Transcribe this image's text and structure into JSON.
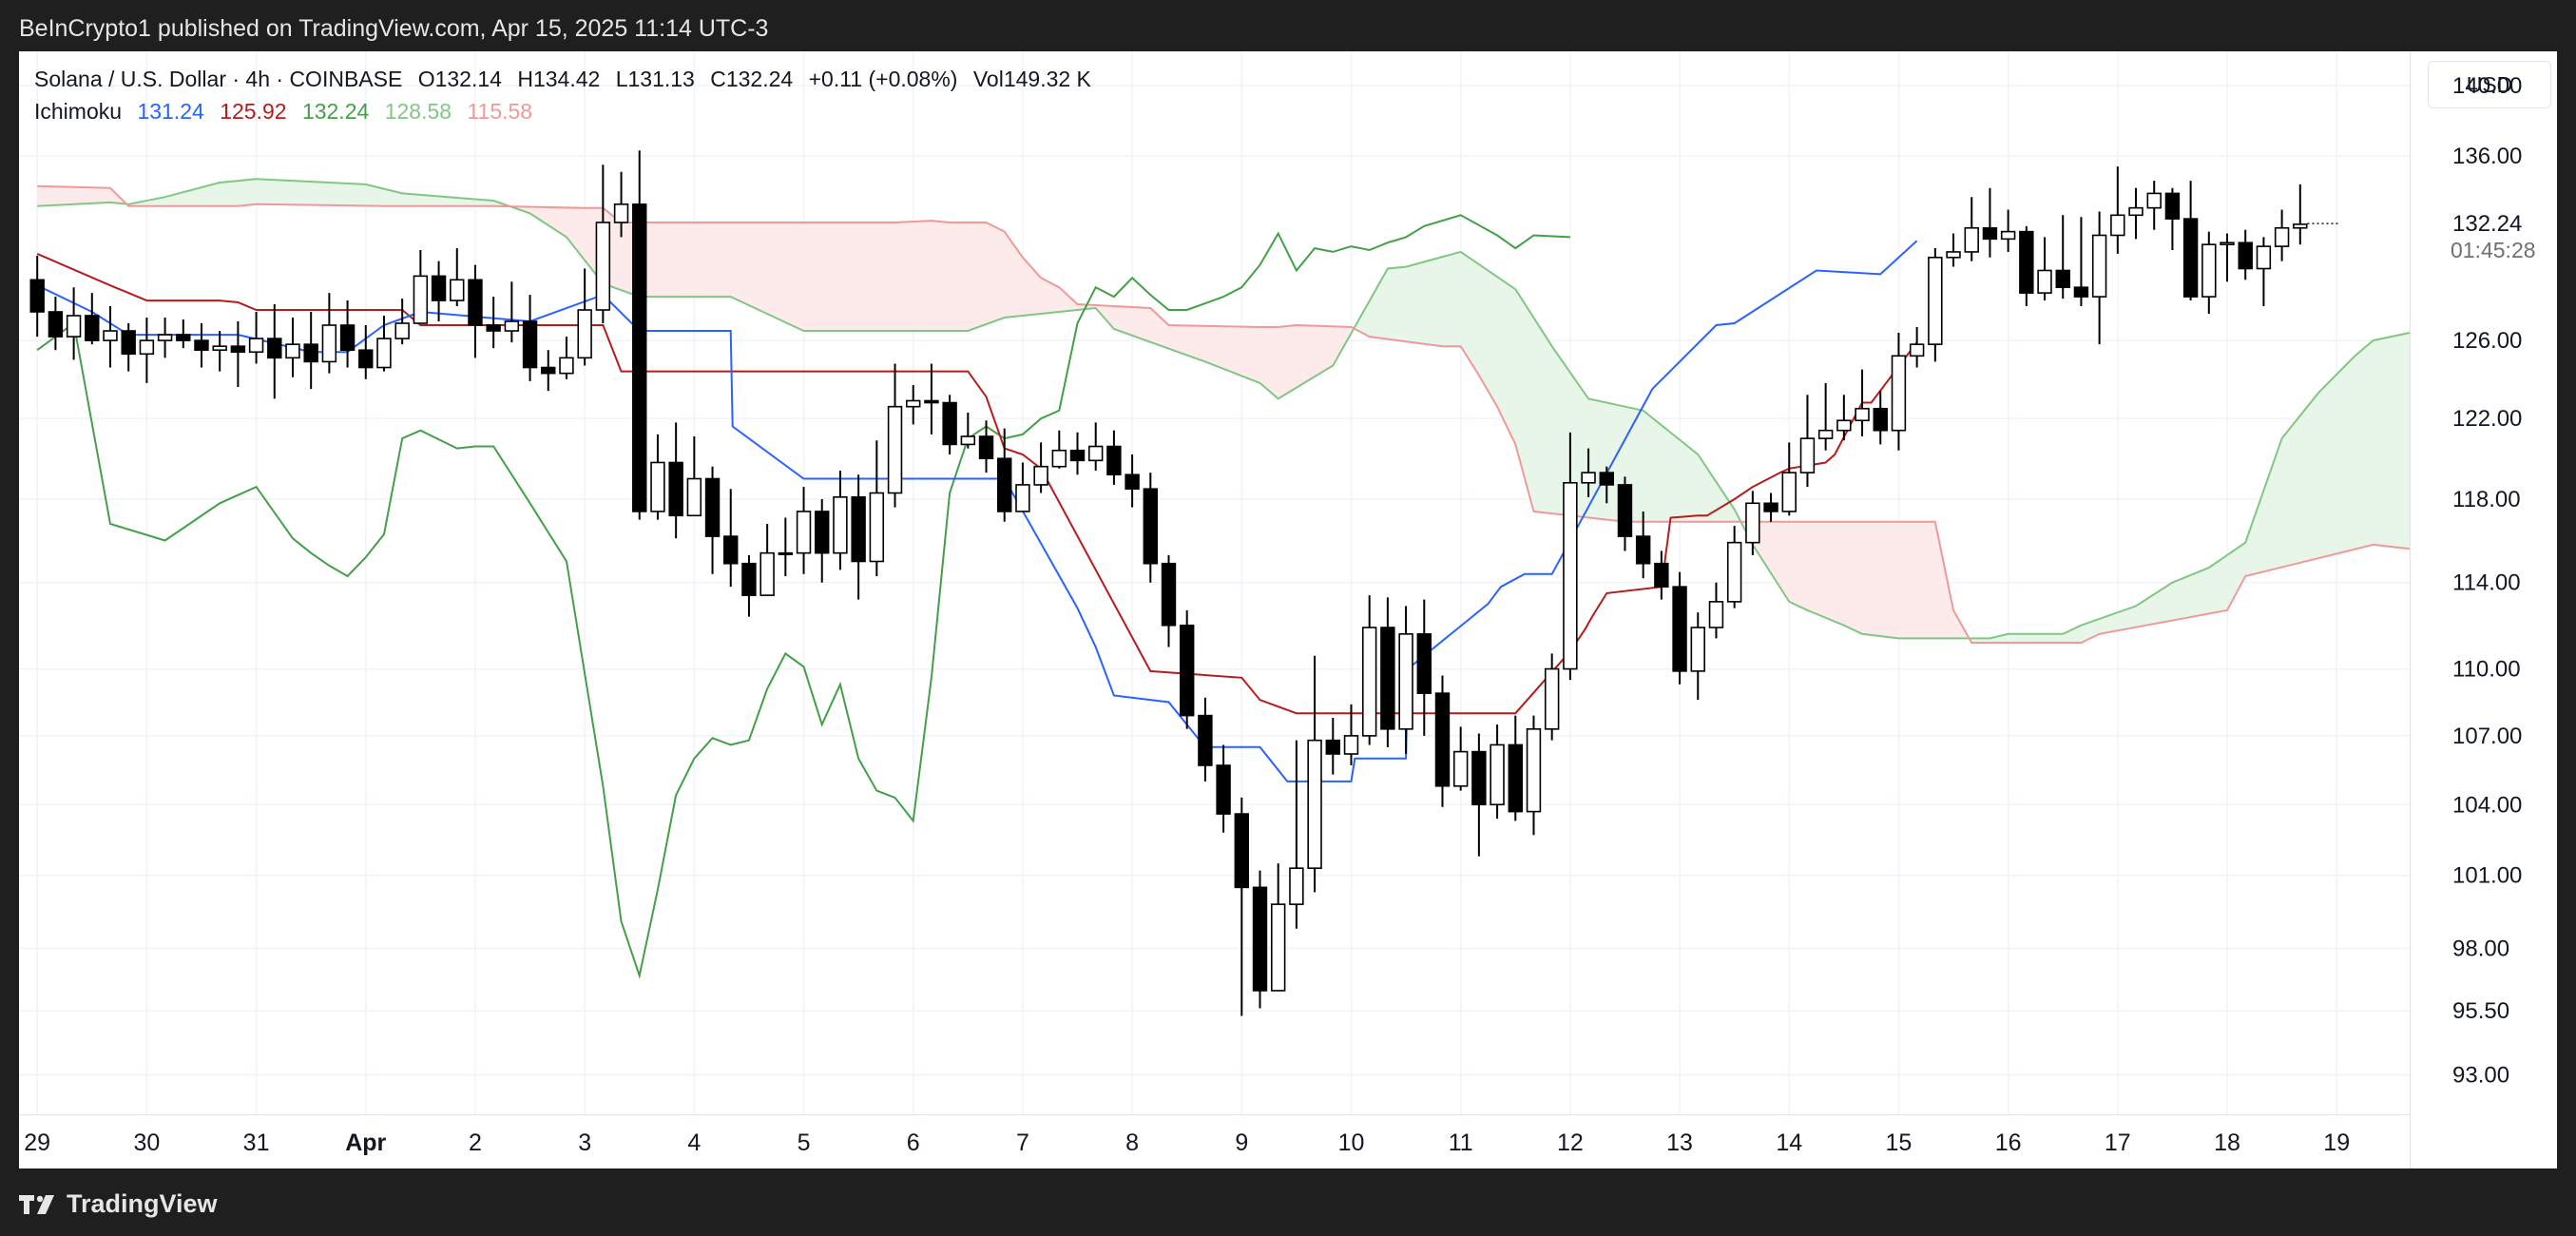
{
  "header": {
    "published": "BeInCrypto1 published on TradingView.com, Apr 15, 2025 11:14 UTC-3"
  },
  "legend": {
    "symbol": "Solana / U.S. Dollar · 4h · COINBASE",
    "open": "O132.14",
    "high": "H134.42",
    "low": "L131.13",
    "close": "C132.24",
    "change": "+0.11 (+0.08%)",
    "volume": "Vol149.32 K",
    "indicator": "Ichimoku",
    "values": [
      "131.24",
      "125.92",
      "132.24",
      "128.58",
      "115.58"
    ]
  },
  "currency": "USD",
  "footer": {
    "brand": "TradingView"
  },
  "colors": {
    "conversion": "#2962ff",
    "base": "#b71c1c",
    "lagging": "#43a047",
    "lead_a": "#81c784",
    "lead_b": "#ef9a9a",
    "cloud_bull": "#e8f5e9",
    "cloud_bear": "#fdeaea",
    "candle_up": "#ffffff",
    "candle_down": "#000000"
  },
  "chart_data": {
    "type": "candlestick",
    "interval": "4h",
    "grid": true,
    "y_ticks": [
      "93.00",
      "95.50",
      "98.00",
      "101.00",
      "104.00",
      "107.00",
      "110.00",
      "114.00",
      "118.00",
      "122.00",
      "126.00",
      "136.00",
      "140.00"
    ],
    "last_price": "132.24",
    "countdown": "01:45:28",
    "x_ticks": [
      {
        "label": "29",
        "x": 0
      },
      {
        "label": "30",
        "x": 6
      },
      {
        "label": "31",
        "x": 12
      },
      {
        "label": "Apr",
        "x": 18
      },
      {
        "label": "2",
        "x": 24
      },
      {
        "label": "3",
        "x": 30
      },
      {
        "label": "4",
        "x": 36
      },
      {
        "label": "5",
        "x": 42
      },
      {
        "label": "6",
        "x": 48
      },
      {
        "label": "7",
        "x": 54
      },
      {
        "label": "8",
        "x": 60
      },
      {
        "label": "9",
        "x": 66
      },
      {
        "label": "10",
        "x": 72
      },
      {
        "label": "11",
        "x": 78
      },
      {
        "label": "12",
        "x": 84
      },
      {
        "label": "13",
        "x": 90
      },
      {
        "label": "14",
        "x": 96
      },
      {
        "label": "15",
        "x": 102
      },
      {
        "label": "16",
        "x": 108
      },
      {
        "label": "17",
        "x": 114
      },
      {
        "label": "18",
        "x": 120
      },
      {
        "label": "19",
        "x": 126
      }
    ],
    "x_range": [
      -1,
      130
    ],
    "y_range": [
      91.5,
      142
    ],
    "candles": [
      [
        129.2,
        127.5,
        130.5,
        126.2
      ],
      [
        127.5,
        126.2,
        128.3,
        125.5
      ],
      [
        126.2,
        127.3,
        128.8,
        125.0
      ],
      [
        127.3,
        126.0,
        128.5,
        125.8
      ],
      [
        126.0,
        126.5,
        127.8,
        124.6
      ],
      [
        126.5,
        125.3,
        126.9,
        124.4
      ],
      [
        125.3,
        126.0,
        127.2,
        123.8
      ],
      [
        126.0,
        126.3,
        127.2,
        125.1
      ],
      [
        126.3,
        126.0,
        127.1,
        125.6
      ],
      [
        126.0,
        125.5,
        126.9,
        124.6
      ],
      [
        125.5,
        125.7,
        126.5,
        124.4
      ],
      [
        125.7,
        125.4,
        127.0,
        123.6
      ],
      [
        125.4,
        126.1,
        127.5,
        124.8
      ],
      [
        126.1,
        125.1,
        127.9,
        123.0
      ],
      [
        125.1,
        125.8,
        127.2,
        124.1
      ],
      [
        125.8,
        124.9,
        127.5,
        123.5
      ],
      [
        124.9,
        126.8,
        128.5,
        124.3
      ],
      [
        126.8,
        125.5,
        128.1,
        124.6
      ],
      [
        125.5,
        124.6,
        126.8,
        124.0
      ],
      [
        124.6,
        126.1,
        127.3,
        124.4
      ],
      [
        126.1,
        126.9,
        128.2,
        125.8
      ],
      [
        126.9,
        129.4,
        130.8,
        127.2
      ],
      [
        129.4,
        128.1,
        130.2,
        127.0
      ],
      [
        128.1,
        129.2,
        130.9,
        127.8
      ],
      [
        129.2,
        126.8,
        130.0,
        125.1
      ],
      [
        126.8,
        126.5,
        128.3,
        125.6
      ],
      [
        126.5,
        127.0,
        129.1,
        125.9
      ],
      [
        127.0,
        124.6,
        128.4,
        123.9
      ],
      [
        124.6,
        124.3,
        125.5,
        123.4
      ],
      [
        124.3,
        125.1,
        126.2,
        124.0
      ],
      [
        125.1,
        127.6,
        129.8,
        124.7
      ],
      [
        127.6,
        132.3,
        135.5,
        126.9
      ],
      [
        132.3,
        133.3,
        135.1,
        131.5
      ],
      [
        133.3,
        117.4,
        136.3,
        117.0
      ],
      [
        117.4,
        119.8,
        121.2,
        117.0
      ],
      [
        119.8,
        117.2,
        121.8,
        116.1
      ],
      [
        117.2,
        119.0,
        121.1,
        117.6
      ],
      [
        119.0,
        116.2,
        119.6,
        114.4
      ],
      [
        116.2,
        114.9,
        118.5,
        113.8
      ],
      [
        114.9,
        113.4,
        115.3,
        112.4
      ],
      [
        113.4,
        115.4,
        116.8,
        113.6
      ],
      [
        115.4,
        115.4,
        117.1,
        114.3
      ],
      [
        115.4,
        117.4,
        118.6,
        114.4
      ],
      [
        117.4,
        115.4,
        118.0,
        114.0
      ],
      [
        115.4,
        118.1,
        119.4,
        114.6
      ],
      [
        118.1,
        115.0,
        119.2,
        113.2
      ],
      [
        115.0,
        118.3,
        120.9,
        114.3
      ],
      [
        118.3,
        122.6,
        124.8,
        117.6
      ],
      [
        122.6,
        122.9,
        123.7,
        121.7
      ],
      [
        122.9,
        122.8,
        124.8,
        121.2
      ],
      [
        122.8,
        120.7,
        123.2,
        120.2
      ],
      [
        120.7,
        121.1,
        122.3,
        120.5
      ],
      [
        121.1,
        120.0,
        121.9,
        119.3
      ],
      [
        120.0,
        117.4,
        121.5,
        116.9
      ],
      [
        117.4,
        118.7,
        119.8,
        117.8
      ],
      [
        118.7,
        119.6,
        120.8,
        118.3
      ],
      [
        119.6,
        120.4,
        121.4,
        119.5
      ],
      [
        120.4,
        119.9,
        121.3,
        119.2
      ],
      [
        119.9,
        120.6,
        121.8,
        119.4
      ],
      [
        120.6,
        119.2,
        121.4,
        118.7
      ],
      [
        119.2,
        118.5,
        120.2,
        117.6
      ],
      [
        118.5,
        114.9,
        119.3,
        114.0
      ],
      [
        114.9,
        112.0,
        115.3,
        111.0
      ],
      [
        112.0,
        107.9,
        112.7,
        107.3
      ],
      [
        107.9,
        105.7,
        108.7,
        105.0
      ],
      [
        105.7,
        103.6,
        106.6,
        102.8
      ],
      [
        103.6,
        100.5,
        104.3,
        95.3
      ],
      [
        100.5,
        96.3,
        101.2,
        95.6
      ],
      [
        96.3,
        99.8,
        101.5,
        96.7
      ],
      [
        99.8,
        101.3,
        106.8,
        98.8
      ],
      [
        101.3,
        106.8,
        110.6,
        100.3
      ],
      [
        106.8,
        106.2,
        107.8,
        105.3
      ],
      [
        106.2,
        107.0,
        108.4,
        105.7
      ],
      [
        107.0,
        111.9,
        113.4,
        106.6
      ],
      [
        111.9,
        107.3,
        113.3,
        106.5
      ],
      [
        107.3,
        111.6,
        112.9,
        106.2
      ],
      [
        111.6,
        108.9,
        113.2,
        107.0
      ],
      [
        108.9,
        104.8,
        109.7,
        103.9
      ],
      [
        104.8,
        106.3,
        107.4,
        104.6
      ],
      [
        106.3,
        104.0,
        107.1,
        101.8
      ],
      [
        104.0,
        106.6,
        107.5,
        103.4
      ],
      [
        106.6,
        103.7,
        107.9,
        103.3
      ],
      [
        103.7,
        107.3,
        107.9,
        102.7
      ],
      [
        107.3,
        110.0,
        110.7,
        106.8
      ],
      [
        110.0,
        118.8,
        121.3,
        109.5
      ],
      [
        118.8,
        119.3,
        120.5,
        118.1
      ],
      [
        119.3,
        118.7,
        119.6,
        117.8
      ],
      [
        118.7,
        116.2,
        119.1,
        115.5
      ],
      [
        116.2,
        114.9,
        117.4,
        114.2
      ],
      [
        114.9,
        113.8,
        115.5,
        113.2
      ],
      [
        113.8,
        109.9,
        114.5,
        109.3
      ],
      [
        109.9,
        111.9,
        112.6,
        108.6
      ],
      [
        111.9,
        113.1,
        114.0,
        111.4
      ],
      [
        113.1,
        115.9,
        116.7,
        112.8
      ],
      [
        115.9,
        117.8,
        118.4,
        115.3
      ],
      [
        117.8,
        117.4,
        118.3,
        116.9
      ],
      [
        117.4,
        119.3,
        120.8,
        117.2
      ],
      [
        119.3,
        121.0,
        123.2,
        118.6
      ],
      [
        121.0,
        121.4,
        123.8,
        120.4
      ],
      [
        121.4,
        121.9,
        123.2,
        120.9
      ],
      [
        121.9,
        122.5,
        124.5,
        121.1
      ],
      [
        122.5,
        121.4,
        123.4,
        120.7
      ],
      [
        121.4,
        125.2,
        126.4,
        120.4
      ],
      [
        125.2,
        125.8,
        126.7,
        124.6
      ],
      [
        125.8,
        130.4,
        130.9,
        124.9
      ],
      [
        130.4,
        130.7,
        131.7,
        129.9
      ],
      [
        130.7,
        132.0,
        133.7,
        130.2
      ],
      [
        132.0,
        131.4,
        134.2,
        130.4
      ],
      [
        131.4,
        131.8,
        133.0,
        130.7
      ],
      [
        131.8,
        128.5,
        132.1,
        127.8
      ],
      [
        128.5,
        129.7,
        131.5,
        128.1
      ],
      [
        129.7,
        128.8,
        132.7,
        128.2
      ],
      [
        128.8,
        128.3,
        132.6,
        127.8
      ],
      [
        128.3,
        131.6,
        132.9,
        125.8
      ],
      [
        131.6,
        132.7,
        135.4,
        130.6
      ],
      [
        132.7,
        133.1,
        134.2,
        131.4
      ],
      [
        133.1,
        133.9,
        134.6,
        131.9
      ],
      [
        133.9,
        132.5,
        134.2,
        130.8
      ],
      [
        132.5,
        128.3,
        134.6,
        128.1
      ],
      [
        128.3,
        131.1,
        131.8,
        127.4
      ],
      [
        131.1,
        131.2,
        131.7,
        129.1
      ],
      [
        131.2,
        129.8,
        131.9,
        129.2
      ],
      [
        129.8,
        131.0,
        131.5,
        127.8
      ],
      [
        131.0,
        132.0,
        133.0,
        130.2
      ],
      [
        132.0,
        132.2,
        134.4,
        131.1
      ]
    ],
    "tenkan": {
      "x": [
        0,
        3,
        5,
        11,
        15,
        17,
        19,
        21,
        27,
        31,
        33,
        38,
        38.1,
        42,
        45,
        53,
        57,
        58,
        59,
        62,
        64,
        67,
        68.5,
        72,
        72.2,
        75,
        75.1,
        79.5,
        80.2,
        81.5,
        83,
        88.5,
        92,
        93,
        97.5,
        101,
        103
      ],
      "y": [
        128.9,
        127.5,
        126.3,
        126.3,
        125.4,
        125.4,
        126.8,
        127.5,
        127.0,
        128.4,
        126.5,
        126.5,
        121.6,
        119.0,
        119.0,
        119.0,
        112.8,
        111.0,
        108.8,
        108.5,
        106.5,
        106.5,
        105.0,
        105.0,
        106.0,
        106.0,
        110.0,
        113.0,
        113.8,
        114.4,
        114.4,
        123.5,
        126.8,
        126.9,
        129.7,
        129.5,
        131.3
      ]
    },
    "kijun": {
      "x": [
        0,
        4,
        5,
        6,
        10,
        11,
        12,
        20,
        21,
        22,
        30,
        31,
        32,
        40,
        41,
        46,
        51,
        52,
        53,
        54,
        55,
        61,
        66,
        67,
        69,
        73,
        74,
        81,
        84,
        84.8,
        85.2,
        86,
        89,
        89.5,
        91,
        91.5,
        93,
        94,
        95.5,
        96,
        98,
        98.5,
        100,
        100.5,
        103
      ],
      "y": [
        130.6,
        128.9,
        128.5,
        128.1,
        128.1,
        128.0,
        127.6,
        127.6,
        126.8,
        126.8,
        126.8,
        126.8,
        124.4,
        124.4,
        124.4,
        124.4,
        124.4,
        123.1,
        120.5,
        120.2,
        119.5,
        109.9,
        109.6,
        108.6,
        108.0,
        108.0,
        108.0,
        108.0,
        110.8,
        111.8,
        112.4,
        113.5,
        113.8,
        117.1,
        117.2,
        117.2,
        118.0,
        118.6,
        119.3,
        119.5,
        119.8,
        120.2,
        122.8,
        122.8,
        125.9
      ]
    },
    "chikou": {
      "x": [
        0,
        2,
        4,
        7,
        10,
        12,
        14,
        15,
        16,
        17,
        18,
        19,
        20,
        21,
        23,
        24,
        25,
        27,
        29,
        31,
        32,
        33,
        34,
        35,
        36,
        37,
        38,
        39,
        40,
        41,
        42,
        43,
        44,
        45,
        46,
        47,
        48,
        49,
        50,
        51,
        52,
        53,
        54,
        55,
        56,
        57,
        58,
        59,
        60,
        61,
        62,
        63,
        65,
        66,
        67,
        68,
        69,
        70,
        71,
        72,
        73,
        74,
        75,
        76,
        78,
        80,
        81,
        82,
        84
      ],
      "y": [
        125.5,
        126.9,
        116.8,
        116.0,
        117.8,
        118.6,
        116.1,
        115.4,
        114.8,
        114.3,
        115.2,
        116.3,
        121.0,
        121.4,
        120.5,
        120.6,
        120.6,
        117.8,
        115.0,
        104.8,
        99.1,
        96.9,
        100.4,
        104.4,
        106.0,
        106.9,
        106.6,
        106.8,
        109.1,
        110.7,
        110.1,
        107.5,
        109.3,
        106.0,
        104.6,
        104.3,
        103.3,
        109.6,
        118.3,
        121.0,
        121.6,
        121.0,
        121.2,
        122.0,
        122.4,
        126.9,
        128.8,
        128.3,
        129.3,
        128.4,
        127.6,
        127.6,
        128.3,
        128.8,
        130.0,
        131.7,
        129.7,
        130.9,
        130.7,
        131.0,
        130.8,
        131.2,
        131.5,
        132.1,
        132.7,
        131.6,
        130.9,
        131.6,
        131.5
      ]
    },
    "senkou_a": {
      "x": [
        0,
        4,
        5,
        7,
        10,
        12,
        16,
        18,
        20,
        25,
        27,
        29,
        31,
        33,
        38,
        42,
        46,
        51,
        53,
        58,
        59,
        64,
        67,
        68,
        71,
        74,
        75,
        78,
        81,
        83,
        85,
        87,
        88,
        91,
        93,
        94,
        96,
        97,
        99,
        100,
        102,
        103,
        107,
        108,
        111,
        112,
        115,
        117,
        119,
        121,
        123,
        125,
        127,
        128,
        130
      ],
      "y": [
        133.2,
        133.4,
        133.3,
        133.7,
        134.5,
        134.7,
        134.5,
        134.4,
        133.9,
        133.5,
        132.8,
        131.5,
        129.0,
        128.3,
        128.3,
        126.5,
        126.5,
        126.5,
        127.2,
        127.7,
        126.6,
        124.9,
        123.8,
        123.0,
        124.7,
        129.8,
        129.9,
        130.7,
        128.7,
        125.7,
        123.0,
        122.6,
        122.4,
        120.2,
        117.5,
        115.8,
        113.1,
        112.7,
        112.0,
        111.6,
        111.4,
        111.4,
        111.4,
        111.6,
        111.6,
        112.0,
        112.9,
        114.0,
        114.7,
        115.9,
        121.0,
        123.3,
        125.2,
        126.0,
        126.4
      ]
    },
    "senkou_b": {
      "x": [
        0,
        4,
        5,
        6,
        11,
        12,
        19,
        25,
        30,
        31,
        32,
        42,
        43,
        47,
        49,
        50,
        51,
        52,
        53,
        54,
        55,
        56,
        57,
        61,
        62,
        67,
        68,
        69,
        72,
        73,
        77,
        78,
        79,
        80,
        81,
        82,
        87,
        88,
        93,
        94,
        95,
        96,
        98,
        100,
        101,
        102,
        104,
        105,
        106,
        108,
        109,
        112,
        113,
        120,
        121,
        128,
        130
      ],
      "y": [
        134.3,
        134.2,
        133.2,
        133.2,
        133.2,
        133.3,
        133.2,
        133.2,
        133.1,
        133.1,
        132.3,
        132.3,
        132.3,
        132.3,
        132.4,
        132.3,
        132.3,
        132.3,
        131.8,
        130.4,
        129.3,
        128.8,
        127.9,
        127.7,
        126.8,
        126.7,
        126.7,
        126.8,
        126.7,
        126.2,
        125.7,
        125.7,
        124.2,
        122.6,
        120.7,
        117.4,
        116.9,
        116.9,
        116.9,
        116.9,
        116.9,
        116.9,
        116.9,
        116.9,
        116.9,
        116.9,
        116.9,
        112.7,
        111.2,
        111.2,
        111.2,
        111.2,
        111.6,
        112.7,
        114.3,
        115.8,
        115.6
      ]
    }
  }
}
